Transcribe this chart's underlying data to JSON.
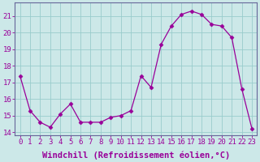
{
  "x": [
    0,
    1,
    2,
    3,
    4,
    5,
    6,
    7,
    8,
    9,
    10,
    11,
    12,
    13,
    14,
    15,
    16,
    17,
    18,
    19,
    20,
    21,
    22,
    23
  ],
  "y": [
    17.4,
    15.3,
    14.6,
    14.3,
    15.1,
    15.7,
    14.6,
    14.6,
    14.6,
    14.9,
    15.0,
    15.3,
    17.4,
    16.7,
    19.3,
    20.4,
    21.1,
    21.3,
    21.1,
    20.5,
    20.4,
    19.7,
    16.6,
    14.2
  ],
  "line_color": "#990099",
  "marker": "D",
  "marker_size": 2.5,
  "bg_color": "#cce8e8",
  "grid_color": "#99cccc",
  "xlabel": "Windchill (Refroidissement éolien,°C)",
  "xlabel_fontsize": 7.5,
  "ylabel_ticks": [
    14,
    15,
    16,
    17,
    18,
    19,
    20,
    21
  ],
  "xtick_labels": [
    "0",
    "1",
    "2",
    "3",
    "4",
    "5",
    "6",
    "7",
    "8",
    "9",
    "10",
    "11",
    "12",
    "13",
    "14",
    "15",
    "16",
    "17",
    "18",
    "19",
    "20",
    "21",
    "22",
    "23"
  ],
  "xlim": [
    -0.5,
    23.5
  ],
  "ylim": [
    13.8,
    21.8
  ],
  "tick_fontsize": 6.5,
  "tick_color": "#990099",
  "spine_color": "#666699"
}
